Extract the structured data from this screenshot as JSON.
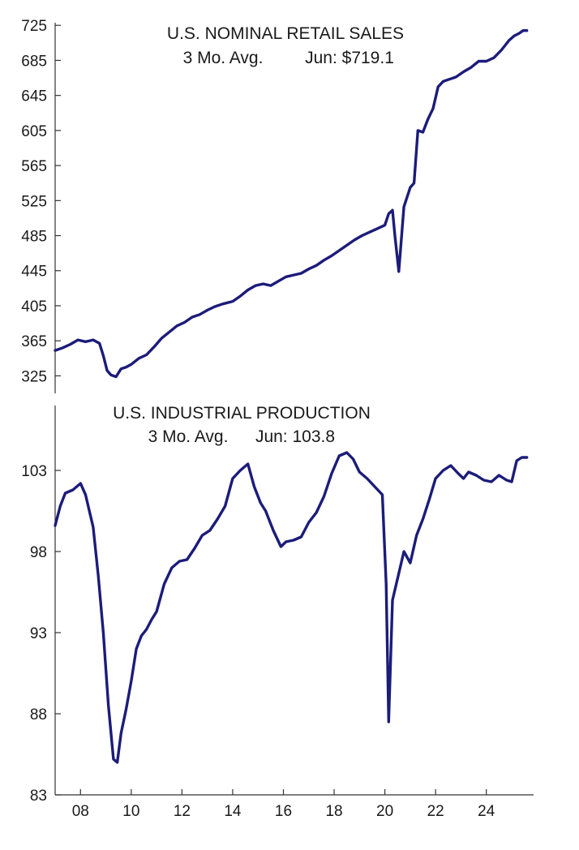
{
  "series_color": "#1c1c7a",
  "chart_data": [
    {
      "type": "line",
      "title": "U.S. NOMINAL RETAIL SALES",
      "subtitle_left": "3 Mo. Avg.",
      "subtitle_right": "Jun: $719.1",
      "xlim": [
        2007.0,
        2025.8
      ],
      "ylim": [
        305,
        728
      ],
      "yticks": [
        "725",
        "685",
        "645",
        "605",
        "565",
        "525",
        "485",
        "445",
        "405",
        "365",
        "325"
      ],
      "x": [
        2007.0,
        2007.3,
        2007.6,
        2007.9,
        2008.2,
        2008.5,
        2008.75,
        2008.9,
        2009.05,
        2009.2,
        2009.4,
        2009.6,
        2009.8,
        2010.0,
        2010.3,
        2010.6,
        2010.9,
        2011.2,
        2011.5,
        2011.8,
        2012.1,
        2012.4,
        2012.7,
        2013.0,
        2013.3,
        2013.6,
        2014.0,
        2014.3,
        2014.6,
        2014.9,
        2015.2,
        2015.5,
        2015.8,
        2016.1,
        2016.4,
        2016.7,
        2017.0,
        2017.3,
        2017.6,
        2017.9,
        2018.2,
        2018.5,
        2018.8,
        2019.1,
        2019.4,
        2019.7,
        2020.0,
        2020.15,
        2020.3,
        2020.4,
        2020.55,
        2020.75,
        2021.0,
        2021.15,
        2021.3,
        2021.5,
        2021.7,
        2021.9,
        2022.1,
        2022.3,
        2022.5,
        2022.8,
        2023.1,
        2023.4,
        2023.7,
        2024.0,
        2024.3,
        2024.6,
        2024.9,
        2025.1,
        2025.3,
        2025.45,
        2025.6
      ],
      "values": [
        354,
        357,
        361,
        366,
        364,
        366,
        362,
        348,
        331,
        326,
        324,
        333,
        335,
        338,
        345,
        349,
        358,
        368,
        375,
        382,
        386,
        392,
        395,
        400,
        404,
        407,
        410,
        416,
        423,
        428,
        430,
        428,
        433,
        438,
        440,
        442,
        447,
        451,
        457,
        462,
        468,
        474,
        480,
        485,
        489,
        493,
        497,
        510,
        514,
        484,
        444,
        518,
        540,
        545,
        605,
        603,
        618,
        630,
        655,
        661,
        663,
        666,
        672,
        677,
        684,
        684,
        688,
        697,
        708,
        713,
        716,
        719,
        719
      ]
    },
    {
      "type": "line",
      "title": "U.S. INDUSTRIAL PRODUCTION",
      "subtitle_left": "3 Mo. Avg.",
      "subtitle_right": "Jun: 103.8",
      "xlim": [
        2007.0,
        2025.8
      ],
      "ylim": [
        83,
        107
      ],
      "yticks": [
        "103",
        "98",
        "93",
        "88",
        "83"
      ],
      "xticks": [
        "08",
        "10",
        "12",
        "14",
        "16",
        "18",
        "20",
        "22",
        "24"
      ],
      "xtick_values": [
        2008,
        2010,
        2012,
        2014,
        2016,
        2018,
        2020,
        2022,
        2024
      ],
      "x": [
        2007.0,
        2007.2,
        2007.4,
        2007.7,
        2008.0,
        2008.2,
        2008.5,
        2008.7,
        2008.9,
        2009.1,
        2009.3,
        2009.45,
        2009.6,
        2009.8,
        2010.0,
        2010.2,
        2010.4,
        2010.6,
        2010.8,
        2011.0,
        2011.3,
        2011.6,
        2011.9,
        2012.2,
        2012.5,
        2012.8,
        2013.1,
        2013.4,
        2013.7,
        2014.0,
        2014.3,
        2014.6,
        2014.85,
        2015.1,
        2015.3,
        2015.6,
        2015.9,
        2016.1,
        2016.4,
        2016.7,
        2017.0,
        2017.3,
        2017.6,
        2017.9,
        2018.2,
        2018.5,
        2018.75,
        2019.0,
        2019.3,
        2019.6,
        2019.9,
        2020.05,
        2020.15,
        2020.3,
        2020.45,
        2020.6,
        2020.75,
        2021.0,
        2021.25,
        2021.5,
        2021.75,
        2022.0,
        2022.3,
        2022.6,
        2022.9,
        2023.1,
        2023.3,
        2023.6,
        2023.9,
        2024.2,
        2024.5,
        2024.8,
        2025.0,
        2025.2,
        2025.4,
        2025.6
      ],
      "values": [
        99.6,
        100.8,
        101.6,
        101.8,
        102.2,
        101.5,
        99.5,
        96.5,
        93.0,
        88.5,
        85.2,
        85.0,
        86.8,
        88.3,
        90.0,
        92.0,
        92.8,
        93.2,
        93.8,
        94.3,
        96.0,
        97.0,
        97.4,
        97.5,
        98.2,
        99.0,
        99.3,
        100.0,
        100.8,
        102.5,
        103.0,
        103.4,
        102.0,
        101.0,
        100.5,
        99.3,
        98.3,
        98.6,
        98.7,
        98.9,
        99.8,
        100.4,
        101.4,
        102.8,
        103.9,
        104.1,
        103.7,
        102.9,
        102.5,
        102.0,
        101.5,
        96.0,
        87.5,
        95.0,
        96.0,
        97.0,
        98.0,
        97.3,
        99.0,
        100.0,
        101.2,
        102.5,
        103.0,
        103.3,
        102.8,
        102.5,
        102.9,
        102.7,
        102.4,
        102.3,
        102.7,
        102.4,
        102.3,
        103.6,
        103.8,
        103.8
      ]
    }
  ]
}
